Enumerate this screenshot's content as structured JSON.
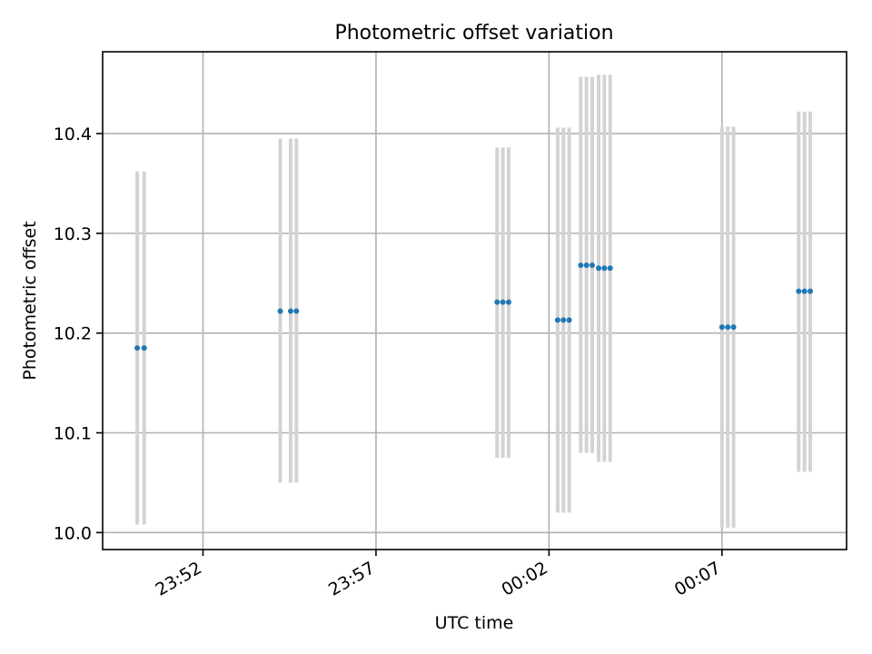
{
  "chart_data": {
    "type": "scatter",
    "title": "Photometric offset variation",
    "xlabel": "UTC time",
    "ylabel": "Photometric offset",
    "grid": true,
    "legend": "none",
    "xlim": [
      "23:49:06",
      "00:10:36"
    ],
    "ylim": [
      9.983,
      10.482
    ],
    "x_ticks": [
      "23:52",
      "23:57",
      "00:02",
      "00:07"
    ],
    "y_ticks": [
      10.0,
      10.1,
      10.2,
      10.3,
      10.4
    ],
    "colors": {
      "point": "#1f77b4",
      "errorbar": "#d3d3d3",
      "grid": "#b0b0b0"
    },
    "points": [
      {
        "x": "23:50:06",
        "y": 10.185,
        "ylow": 10.008,
        "yhigh": 10.362
      },
      {
        "x": "23:50:18",
        "y": 10.185,
        "ylow": 10.008,
        "yhigh": 10.362
      },
      {
        "x": "23:54:14",
        "y": 10.222,
        "ylow": 10.05,
        "yhigh": 10.395
      },
      {
        "x": "23:54:32",
        "y": 10.222,
        "ylow": 10.05,
        "yhigh": 10.395
      },
      {
        "x": "23:54:42",
        "y": 10.222,
        "ylow": 10.05,
        "yhigh": 10.395
      },
      {
        "x": "00:00:30",
        "y": 10.231,
        "ylow": 10.075,
        "yhigh": 10.386
      },
      {
        "x": "00:00:40",
        "y": 10.231,
        "ylow": 10.075,
        "yhigh": 10.386
      },
      {
        "x": "00:00:50",
        "y": 10.231,
        "ylow": 10.075,
        "yhigh": 10.386
      },
      {
        "x": "00:02:15",
        "y": 10.213,
        "ylow": 10.02,
        "yhigh": 10.406
      },
      {
        "x": "00:02:25",
        "y": 10.213,
        "ylow": 10.02,
        "yhigh": 10.406
      },
      {
        "x": "00:02:35",
        "y": 10.213,
        "ylow": 10.02,
        "yhigh": 10.406
      },
      {
        "x": "00:02:55",
        "y": 10.268,
        "ylow": 10.08,
        "yhigh": 10.457
      },
      {
        "x": "00:03:05",
        "y": 10.268,
        "ylow": 10.08,
        "yhigh": 10.457
      },
      {
        "x": "00:03:15",
        "y": 10.268,
        "ylow": 10.08,
        "yhigh": 10.457
      },
      {
        "x": "00:03:26",
        "y": 10.265,
        "ylow": 10.071,
        "yhigh": 10.459
      },
      {
        "x": "00:03:36",
        "y": 10.265,
        "ylow": 10.071,
        "yhigh": 10.459
      },
      {
        "x": "00:03:46",
        "y": 10.265,
        "ylow": 10.071,
        "yhigh": 10.459
      },
      {
        "x": "00:07:00",
        "y": 10.206,
        "ylow": 10.005,
        "yhigh": 10.407
      },
      {
        "x": "00:07:10",
        "y": 10.206,
        "ylow": 10.005,
        "yhigh": 10.407
      },
      {
        "x": "00:07:20",
        "y": 10.206,
        "ylow": 10.005,
        "yhigh": 10.407
      },
      {
        "x": "00:09:13",
        "y": 10.242,
        "ylow": 10.061,
        "yhigh": 10.422
      },
      {
        "x": "00:09:23",
        "y": 10.242,
        "ylow": 10.061,
        "yhigh": 10.422
      },
      {
        "x": "00:09:33",
        "y": 10.242,
        "ylow": 10.061,
        "yhigh": 10.422
      }
    ]
  }
}
